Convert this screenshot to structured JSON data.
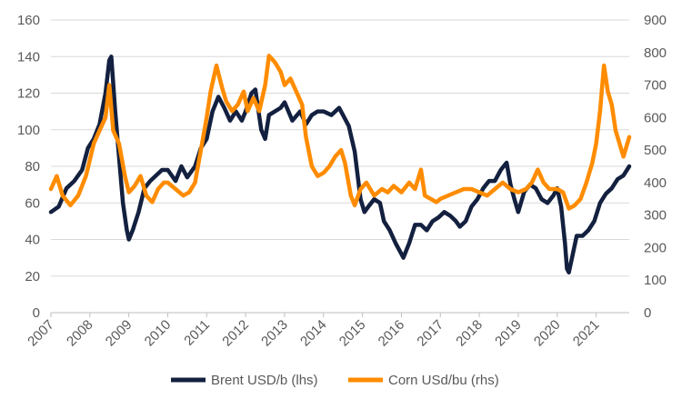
{
  "chart_data": {
    "type": "line",
    "title": "",
    "xlabel": "",
    "ylabel_left": "",
    "ylabel_right": "",
    "x_ticks": [
      "2007",
      "2008",
      "2009",
      "2010",
      "2011",
      "2012",
      "2013",
      "2014",
      "2015",
      "2016",
      "2017",
      "2018",
      "2019",
      "2020",
      "2021"
    ],
    "xlim": [
      2007.0,
      2021.85
    ],
    "ylim_left": [
      0,
      160
    ],
    "yticks_left": [
      0,
      20,
      40,
      60,
      80,
      100,
      120,
      140,
      160
    ],
    "ylim_right": [
      0,
      900
    ],
    "yticks_right": [
      0,
      100,
      200,
      300,
      400,
      500,
      600,
      700,
      800,
      900
    ],
    "grid": true,
    "legend_position": "bottom",
    "series": [
      {
        "name": "Brent USD/b (lhs)",
        "axis": "left",
        "color": "#13203f",
        "x": [
          2007.0,
          2007.2,
          2007.4,
          2007.6,
          2007.8,
          2007.95,
          2008.1,
          2008.25,
          2008.4,
          2008.5,
          2008.55,
          2008.65,
          2008.75,
          2008.85,
          2008.95,
          2009.0,
          2009.1,
          2009.25,
          2009.4,
          2009.55,
          2009.7,
          2009.85,
          2010.0,
          2010.2,
          2010.35,
          2010.5,
          2010.7,
          2010.85,
          2011.0,
          2011.15,
          2011.3,
          2011.45,
          2011.6,
          2011.75,
          2011.9,
          2012.0,
          2012.15,
          2012.25,
          2012.4,
          2012.5,
          2012.6,
          2012.75,
          2012.9,
          2013.0,
          2013.2,
          2013.4,
          2013.55,
          2013.7,
          2013.85,
          2014.0,
          2014.2,
          2014.4,
          2014.5,
          2014.65,
          2014.8,
          2014.95,
          2015.05,
          2015.15,
          2015.3,
          2015.45,
          2015.55,
          2015.7,
          2015.85,
          2016.0,
          2016.05,
          2016.2,
          2016.35,
          2016.5,
          2016.65,
          2016.8,
          2016.95,
          2017.1,
          2017.25,
          2017.4,
          2017.5,
          2017.65,
          2017.8,
          2017.95,
          2018.1,
          2018.25,
          2018.4,
          2018.55,
          2018.7,
          2018.8,
          2018.9,
          2019.0,
          2019.15,
          2019.3,
          2019.45,
          2019.6,
          2019.75,
          2019.9,
          2020.0,
          2020.1,
          2020.2,
          2020.25,
          2020.3,
          2020.4,
          2020.5,
          2020.65,
          2020.8,
          2020.95,
          2021.1,
          2021.25,
          2021.4,
          2021.55,
          2021.7,
          2021.85
        ],
        "values": [
          55,
          58,
          68,
          72,
          78,
          90,
          95,
          103,
          120,
          138,
          140,
          110,
          85,
          60,
          45,
          40,
          45,
          55,
          68,
          72,
          75,
          78,
          78,
          72,
          80,
          74,
          80,
          90,
          95,
          110,
          118,
          112,
          105,
          110,
          105,
          110,
          120,
          122,
          100,
          95,
          108,
          110,
          112,
          115,
          105,
          110,
          103,
          108,
          110,
          110,
          108,
          112,
          108,
          102,
          88,
          62,
          55,
          58,
          62,
          60,
          50,
          45,
          38,
          32,
          30,
          38,
          48,
          48,
          45,
          50,
          52,
          55,
          53,
          50,
          47,
          50,
          58,
          62,
          68,
          72,
          72,
          78,
          82,
          70,
          62,
          55,
          66,
          70,
          68,
          62,
          60,
          64,
          68,
          58,
          38,
          24,
          22,
          32,
          42,
          42,
          45,
          50,
          60,
          65,
          68,
          73,
          75,
          80
        ]
      },
      {
        "name": "Corn USd/bu (rhs)",
        "axis": "right",
        "color": "#ff8c00",
        "x": [
          2007.0,
          2007.15,
          2007.3,
          2007.5,
          2007.7,
          2007.9,
          2008.1,
          2008.25,
          2008.4,
          2008.5,
          2008.6,
          2008.75,
          2008.9,
          2009.0,
          2009.15,
          2009.3,
          2009.45,
          2009.6,
          2009.75,
          2009.9,
          2010.0,
          2010.2,
          2010.4,
          2010.55,
          2010.7,
          2010.85,
          2011.0,
          2011.1,
          2011.25,
          2011.4,
          2011.5,
          2011.65,
          2011.8,
          2011.95,
          2012.05,
          2012.2,
          2012.35,
          2012.5,
          2012.6,
          2012.75,
          2012.9,
          2013.0,
          2013.15,
          2013.3,
          2013.45,
          2013.55,
          2013.7,
          2013.85,
          2014.0,
          2014.15,
          2014.3,
          2014.45,
          2014.55,
          2014.7,
          2014.8,
          2014.95,
          2015.1,
          2015.3,
          2015.5,
          2015.65,
          2015.8,
          2016.0,
          2016.2,
          2016.35,
          2016.5,
          2016.6,
          2016.75,
          2016.9,
          2017.0,
          2017.2,
          2017.4,
          2017.6,
          2017.8,
          2018.0,
          2018.2,
          2018.4,
          2018.6,
          2018.8,
          2019.0,
          2019.2,
          2019.35,
          2019.5,
          2019.65,
          2019.8,
          2020.0,
          2020.15,
          2020.3,
          2020.45,
          2020.6,
          2020.75,
          2020.9,
          2021.0,
          2021.1,
          2021.2,
          2021.3,
          2021.4,
          2021.5,
          2021.6,
          2021.7,
          2021.85
        ],
        "values": [
          380,
          420,
          360,
          330,
          360,
          420,
          520,
          560,
          600,
          700,
          560,
          520,
          420,
          370,
          390,
          420,
          360,
          340,
          380,
          400,
          400,
          380,
          360,
          370,
          400,
          500,
          600,
          680,
          760,
          690,
          650,
          620,
          640,
          680,
          620,
          660,
          620,
          700,
          790,
          770,
          740,
          700,
          720,
          680,
          640,
          540,
          450,
          420,
          430,
          450,
          480,
          500,
          460,
          360,
          330,
          380,
          400,
          360,
          380,
          370,
          390,
          370,
          400,
          380,
          440,
          360,
          350,
          340,
          350,
          360,
          370,
          380,
          380,
          370,
          360,
          380,
          400,
          380,
          370,
          380,
          400,
          440,
          400,
          380,
          380,
          370,
          320,
          330,
          350,
          400,
          460,
          520,
          620,
          760,
          680,
          640,
          560,
          520,
          480,
          540
        ]
      }
    ]
  }
}
